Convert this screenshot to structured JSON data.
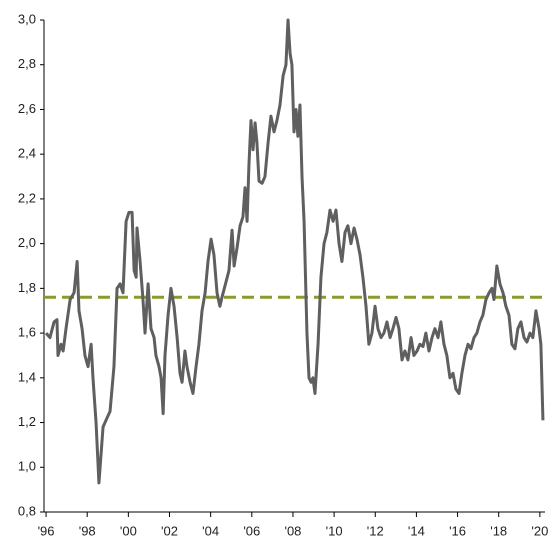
{
  "chart_data": {
    "type": "line",
    "x": [
      1996.0,
      1996.19,
      1996.39,
      1996.53,
      1996.58,
      1996.73,
      1996.83,
      1996.97,
      1997.17,
      1997.36,
      1997.51,
      1997.6,
      1997.75,
      1997.89,
      1998.04,
      1998.19,
      1998.28,
      1998.43,
      1998.57,
      1998.77,
      1998.96,
      1999.11,
      1999.3,
      1999.45,
      1999.6,
      1999.74,
      1999.89,
      2000.03,
      2000.18,
      2000.28,
      2000.38,
      2000.42,
      2000.57,
      2000.71,
      2000.81,
      2000.96,
      2001.1,
      2001.25,
      2001.34,
      2001.49,
      2001.59,
      2001.69,
      2001.78,
      2001.93,
      2002.07,
      2002.22,
      2002.37,
      2002.51,
      2002.61,
      2002.75,
      2002.85,
      2003.0,
      2003.14,
      2003.29,
      2003.43,
      2003.58,
      2003.73,
      2003.87,
      2004.02,
      2004.16,
      2004.31,
      2004.45,
      2004.55,
      2004.75,
      2004.89,
      2005.04,
      2005.14,
      2005.28,
      2005.43,
      2005.57,
      2005.67,
      2005.77,
      2005.86,
      2005.96,
      2006.06,
      2006.16,
      2006.25,
      2006.35,
      2006.5,
      2006.64,
      2006.79,
      2006.93,
      2007.08,
      2007.22,
      2007.37,
      2007.52,
      2007.66,
      2007.76,
      2007.86,
      2007.95,
      2008.05,
      2008.15,
      2008.24,
      2008.34,
      2008.44,
      2008.54,
      2008.68,
      2008.78,
      2008.88,
      2008.97,
      2009.07,
      2009.22,
      2009.36,
      2009.51,
      2009.65,
      2009.8,
      2009.95,
      2010.09,
      2010.24,
      2010.38,
      2010.53,
      2010.67,
      2010.82,
      2010.97,
      2011.11,
      2011.26,
      2011.4,
      2011.55,
      2011.69,
      2011.84,
      2011.99,
      2012.13,
      2012.28,
      2012.42,
      2012.57,
      2012.72,
      2012.86,
      2013.01,
      2013.15,
      2013.3,
      2013.44,
      2013.59,
      2013.74,
      2013.88,
      2014.03,
      2014.17,
      2014.32,
      2014.46,
      2014.61,
      2014.76,
      2014.9,
      2015.05,
      2015.19,
      2015.34,
      2015.48,
      2015.63,
      2015.78,
      2015.92,
      2016.07,
      2016.21,
      2016.36,
      2016.51,
      2016.65,
      2016.8,
      2016.94,
      2017.09,
      2017.23,
      2017.38,
      2017.53,
      2017.67,
      2017.77,
      2017.91,
      2018.06,
      2018.21,
      2018.35,
      2018.5,
      2018.64,
      2018.79,
      2018.93,
      2019.08,
      2019.23,
      2019.37,
      2019.52,
      2019.66,
      2019.81,
      2019.96,
      2020.05,
      2020.15
    ],
    "series": [
      {
        "color": "#5f5f5f",
        "values": [
          1.6,
          1.58,
          1.65,
          1.66,
          1.5,
          1.55,
          1.52,
          1.62,
          1.75,
          1.78,
          1.92,
          1.7,
          1.62,
          1.5,
          1.45,
          1.55,
          1.4,
          1.2,
          0.93,
          1.18,
          1.22,
          1.25,
          1.45,
          1.8,
          1.82,
          1.78,
          2.1,
          2.14,
          2.14,
          1.88,
          1.85,
          2.07,
          1.92,
          1.75,
          1.6,
          1.82,
          1.62,
          1.58,
          1.5,
          1.45,
          1.4,
          1.24,
          1.5,
          1.68,
          1.8,
          1.72,
          1.58,
          1.42,
          1.38,
          1.52,
          1.45,
          1.38,
          1.33,
          1.45,
          1.55,
          1.7,
          1.78,
          1.92,
          2.02,
          1.95,
          1.78,
          1.72,
          1.76,
          1.83,
          1.88,
          2.06,
          1.9,
          1.98,
          2.08,
          2.12,
          2.25,
          2.1,
          2.35,
          2.55,
          2.42,
          2.54,
          2.45,
          2.28,
          2.27,
          2.3,
          2.45,
          2.57,
          2.5,
          2.55,
          2.62,
          2.75,
          2.8,
          3.0,
          2.85,
          2.8,
          2.5,
          2.6,
          2.48,
          2.62,
          2.3,
          2.1,
          1.6,
          1.4,
          1.38,
          1.4,
          1.33,
          1.55,
          1.85,
          2.0,
          2.05,
          2.15,
          2.1,
          2.15,
          2.0,
          1.92,
          2.05,
          2.08,
          2.0,
          2.07,
          2.02,
          1.95,
          1.85,
          1.72,
          1.55,
          1.6,
          1.72,
          1.62,
          1.58,
          1.6,
          1.65,
          1.58,
          1.62,
          1.67,
          1.62,
          1.48,
          1.52,
          1.48,
          1.58,
          1.5,
          1.52,
          1.55,
          1.54,
          1.6,
          1.52,
          1.58,
          1.62,
          1.58,
          1.65,
          1.55,
          1.5,
          1.4,
          1.42,
          1.35,
          1.33,
          1.42,
          1.5,
          1.55,
          1.53,
          1.58,
          1.6,
          1.65,
          1.68,
          1.75,
          1.78,
          1.8,
          1.75,
          1.9,
          1.82,
          1.78,
          1.72,
          1.68,
          1.55,
          1.53,
          1.62,
          1.65,
          1.58,
          1.56,
          1.6,
          1.58,
          1.7,
          1.62,
          1.55,
          1.21
        ]
      }
    ],
    "reference_line": {
      "value": 1.76,
      "color": "#8a9a2c",
      "dashed": true
    },
    "xlim": [
      1995.9,
      2020.25
    ],
    "xticks": [
      {
        "value": 1996,
        "label": "'96"
      },
      {
        "value": 1998,
        "label": "'98"
      },
      {
        "value": 2000,
        "label": "'00"
      },
      {
        "value": 2002,
        "label": "'02"
      },
      {
        "value": 2004,
        "label": "'04"
      },
      {
        "value": 2006,
        "label": "'06"
      },
      {
        "value": 2008,
        "label": "'08"
      },
      {
        "value": 2010,
        "label": "'10"
      },
      {
        "value": 2012,
        "label": "'12"
      },
      {
        "value": 2014,
        "label": "'14"
      },
      {
        "value": 2016,
        "label": "'16"
      },
      {
        "value": 2018,
        "label": "'18"
      },
      {
        "value": 2020,
        "label": "'20"
      }
    ],
    "ylim": [
      0.8,
      3.0
    ],
    "yticks": [
      {
        "value": 0.8,
        "label": "0,8"
      },
      {
        "value": 1.0,
        "label": "1,0"
      },
      {
        "value": 1.2,
        "label": "1,2"
      },
      {
        "value": 1.4,
        "label": "1,4"
      },
      {
        "value": 1.6,
        "label": "1,6"
      },
      {
        "value": 1.8,
        "label": "1,8"
      },
      {
        "value": 2.0,
        "label": "2,0"
      },
      {
        "value": 2.2,
        "label": "2,2"
      },
      {
        "value": 2.4,
        "label": "2,4"
      },
      {
        "value": 2.6,
        "label": "2,6"
      },
      {
        "value": 2.8,
        "label": "2,8"
      },
      {
        "value": 3.0,
        "label": "3,0"
      }
    ],
    "grid": false
  }
}
